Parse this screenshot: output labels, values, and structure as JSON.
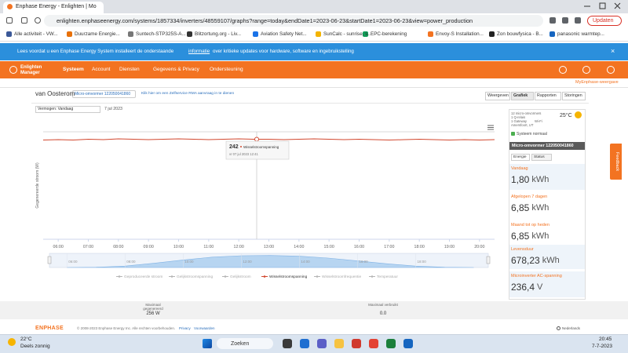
{
  "browser": {
    "tab": "Enphase Energy - Enlighten | Mo",
    "url": "enlighten.enphaseenergy.com/systems/1857334/inverters/48559107/graphs?range=today&endDate1=2023-06-23&startDate1=2023-06-23&view=power_production",
    "update_button": "Updaten",
    "bookmarks": [
      "Alle activiteit - VW...",
      "Duurzame Energie...",
      "Suntech-STP325S-A...",
      "Blitzortung.org - Liv...",
      "Aviation Safety Net...",
      "SunCalc - sunrise, s...",
      "EPC-berekening",
      "Envoy-S Installation...",
      "Zon bouwfysica - B...",
      "panasonic warmtep..."
    ]
  },
  "banner": {
    "text_before": "Lees voordat u een Enphase Energy System installeert de onderstaande",
    "link": "informatie",
    "text_after": "over kritieke updates voor hardware, software en ingebruikstelling",
    "close": "×"
  },
  "nav": {
    "logo_line1": "Enlighten",
    "logo_line2": "Manager",
    "items": [
      "Systeem",
      "Account",
      "Diensten",
      "Gegevens & Privacy",
      "Ondersteuning"
    ]
  },
  "view_link": "MyEnphase-weergave",
  "system": {
    "name": "van Oosterom",
    "device": "Micro-omvormer 122050041860",
    "rma": "Klik hier om een Zelfservice RMA aanvraag in te dienen",
    "tabs": [
      "Weergeven",
      "Grafiek",
      "Rapporten",
      "Storingen"
    ]
  },
  "graph_controls": {
    "range": "Vermogen: Vandaag",
    "date": "7 jul 2023"
  },
  "chart_data": {
    "type": "line",
    "y_label": "Gegenereerde stroom (W)",
    "grid": false,
    "series": [
      {
        "name": "Wisselstroomspanning",
        "color": "#d2472e",
        "x": [
          5.5,
          6,
          6.5,
          7,
          7.5,
          8,
          8.5,
          9,
          9.5,
          10,
          10.5,
          11,
          11.5,
          12,
          12.5,
          13,
          13.5,
          14,
          14.5,
          15,
          15.5,
          16,
          16.5,
          17,
          17.5,
          18,
          18.5,
          19,
          19.5,
          20,
          20.5
        ],
        "values": [
          240,
          241,
          240,
          242,
          241,
          243,
          242,
          241,
          242,
          243,
          242,
          241,
          242,
          243,
          242,
          242,
          241,
          242,
          243,
          242,
          241,
          242,
          241,
          240,
          241,
          242,
          241,
          240,
          241,
          240,
          241
        ]
      }
    ],
    "xlim": [
      5.5,
      20.5
    ],
    "ylim": [
      0,
      260
    ],
    "xticks": [
      {
        "value": 6,
        "label": "06:00"
      },
      {
        "value": 7,
        "label": "07:00"
      },
      {
        "value": 8,
        "label": "08:00"
      },
      {
        "value": 9,
        "label": "09:00"
      },
      {
        "value": 10,
        "label": "10:00"
      },
      {
        "value": 11,
        "label": "11:00"
      },
      {
        "value": 12,
        "label": "12:00"
      },
      {
        "value": 13,
        "label": "13:00"
      },
      {
        "value": 14,
        "label": "14:00"
      },
      {
        "value": 15,
        "label": "15:00"
      },
      {
        "value": 16,
        "label": "16:00"
      },
      {
        "value": 17,
        "label": "17:00"
      },
      {
        "value": 18,
        "label": "18:00"
      },
      {
        "value": 19,
        "label": "19:00"
      },
      {
        "value": 20,
        "label": "20:00"
      }
    ],
    "tooltip": {
      "value": 242,
      "time": "vr 07 jul 2023 12:41"
    },
    "navigator": {
      "color": "#a9cdef",
      "x": [
        6,
        7,
        8,
        9,
        10,
        11,
        12,
        13,
        14,
        15,
        16,
        17,
        18,
        19,
        20
      ],
      "values": [
        0,
        5,
        30,
        90,
        160,
        220,
        250,
        256,
        240,
        200,
        140,
        80,
        30,
        5,
        0
      ],
      "xlim": [
        5.4,
        20.5
      ],
      "ylim": [
        0,
        300
      ],
      "xticks": [
        {
          "value": 6,
          "label": "06:00"
        },
        {
          "value": 8,
          "label": "08:00"
        },
        {
          "value": 10,
          "label": "10:00"
        },
        {
          "value": 12,
          "label": "12:00"
        },
        {
          "value": 14,
          "label": "14:00"
        },
        {
          "value": 16,
          "label": "16:00"
        },
        {
          "value": 18,
          "label": "18:00"
        }
      ]
    },
    "legend": [
      {
        "name": "Geproduceerde stroom",
        "color": "#b5b5b5"
      },
      {
        "name": "Gelijkstroomspanning",
        "color": "#b5b5b5"
      },
      {
        "name": "Gelijkstroom",
        "color": "#b5b5b5"
      },
      {
        "name": "Wisselstroomspanning",
        "color": "#d2472e"
      },
      {
        "name": "Wisselstroomfrequentie",
        "color": "#b5b5b5"
      },
      {
        "name": "Temperatuur",
        "color": "#b5b5b5"
      }
    ]
  },
  "panel": {
    "info": [
      "12 micro-omvormers",
      "1 Q-relais",
      "1 Gateway",
      "Amersfoort, UT"
    ],
    "wifi": "Wi-Fi",
    "temperature": "25°C",
    "status": "Systeem normaal",
    "header": "Micro-omvormer 122050041860",
    "tabs": [
      "Energie",
      "Status"
    ],
    "metrics": [
      {
        "label": "Vandaag",
        "value": "1,80",
        "unit": "kWh"
      },
      {
        "label": "Afgelopen 7 dagen",
        "value": "6,85",
        "unit": "kWh"
      },
      {
        "label": "Maand tot op heden",
        "value": "6,85",
        "unit": "kWh"
      },
      {
        "label": "Levensduur",
        "value": "678,23",
        "unit": "kWh"
      },
      {
        "label": "Microinverter AC-spanning",
        "value": "236,4",
        "unit": "V"
      }
    ]
  },
  "feedback": "Feedback",
  "summary": [
    {
      "label": "Maximaal gegenereerd",
      "value": "256 W"
    },
    {
      "label": "Maximaal verbruikt",
      "value": "0.0"
    }
  ],
  "footer": {
    "logo": "ENPHASE",
    "copyright": "© 2008-2023 Enphase Energy Inc. Alle rechten voorbehouden.",
    "privacy": "Privacy",
    "terms": "Voorwaarden",
    "language": "Nederlands"
  },
  "taskbar": {
    "temperature": "22°C",
    "weather": "Deels zonnig",
    "search": "Zoeken",
    "time": "20:45",
    "date": "7-7-2023"
  }
}
